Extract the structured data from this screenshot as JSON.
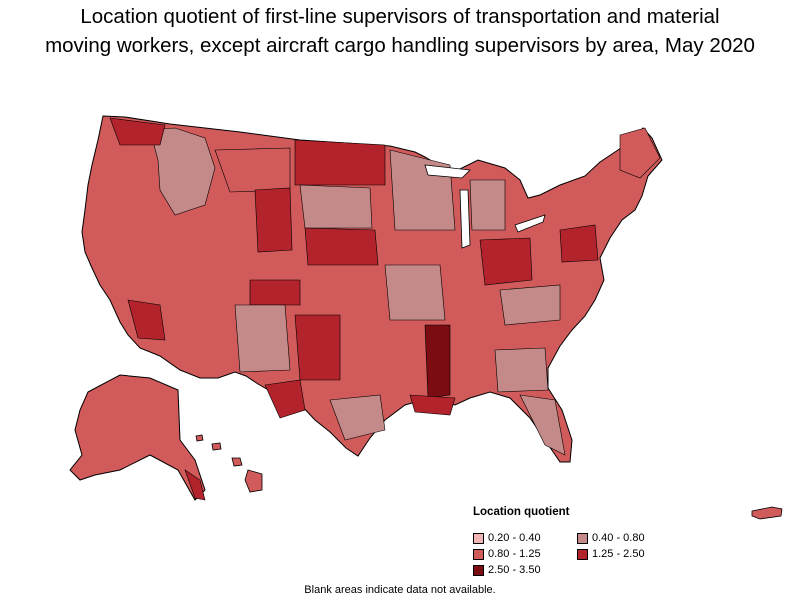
{
  "title": {
    "line1": "Location quotient of first-line supervisors of transportation and material",
    "line2": "moving workers, except aircraft cargo handling supervisors by area, May 2020"
  },
  "legend": {
    "title": "Location quotient",
    "items": [
      {
        "label": "0.20 - 0.40",
        "color": "#f2b5b5"
      },
      {
        "label": "0.40 - 0.80",
        "color": "#c48a8a"
      },
      {
        "label": "0.80 - 1.25",
        "color": "#d15a5a"
      },
      {
        "label": "1.25 - 2.50",
        "color": "#b3232b"
      },
      {
        "label": "2.50 - 3.50",
        "color": "#7a0c12"
      }
    ]
  },
  "note": "Blank areas indicate data not available.",
  "colors": {
    "border": "#000000",
    "base_fill": "#d15a5a"
  }
}
